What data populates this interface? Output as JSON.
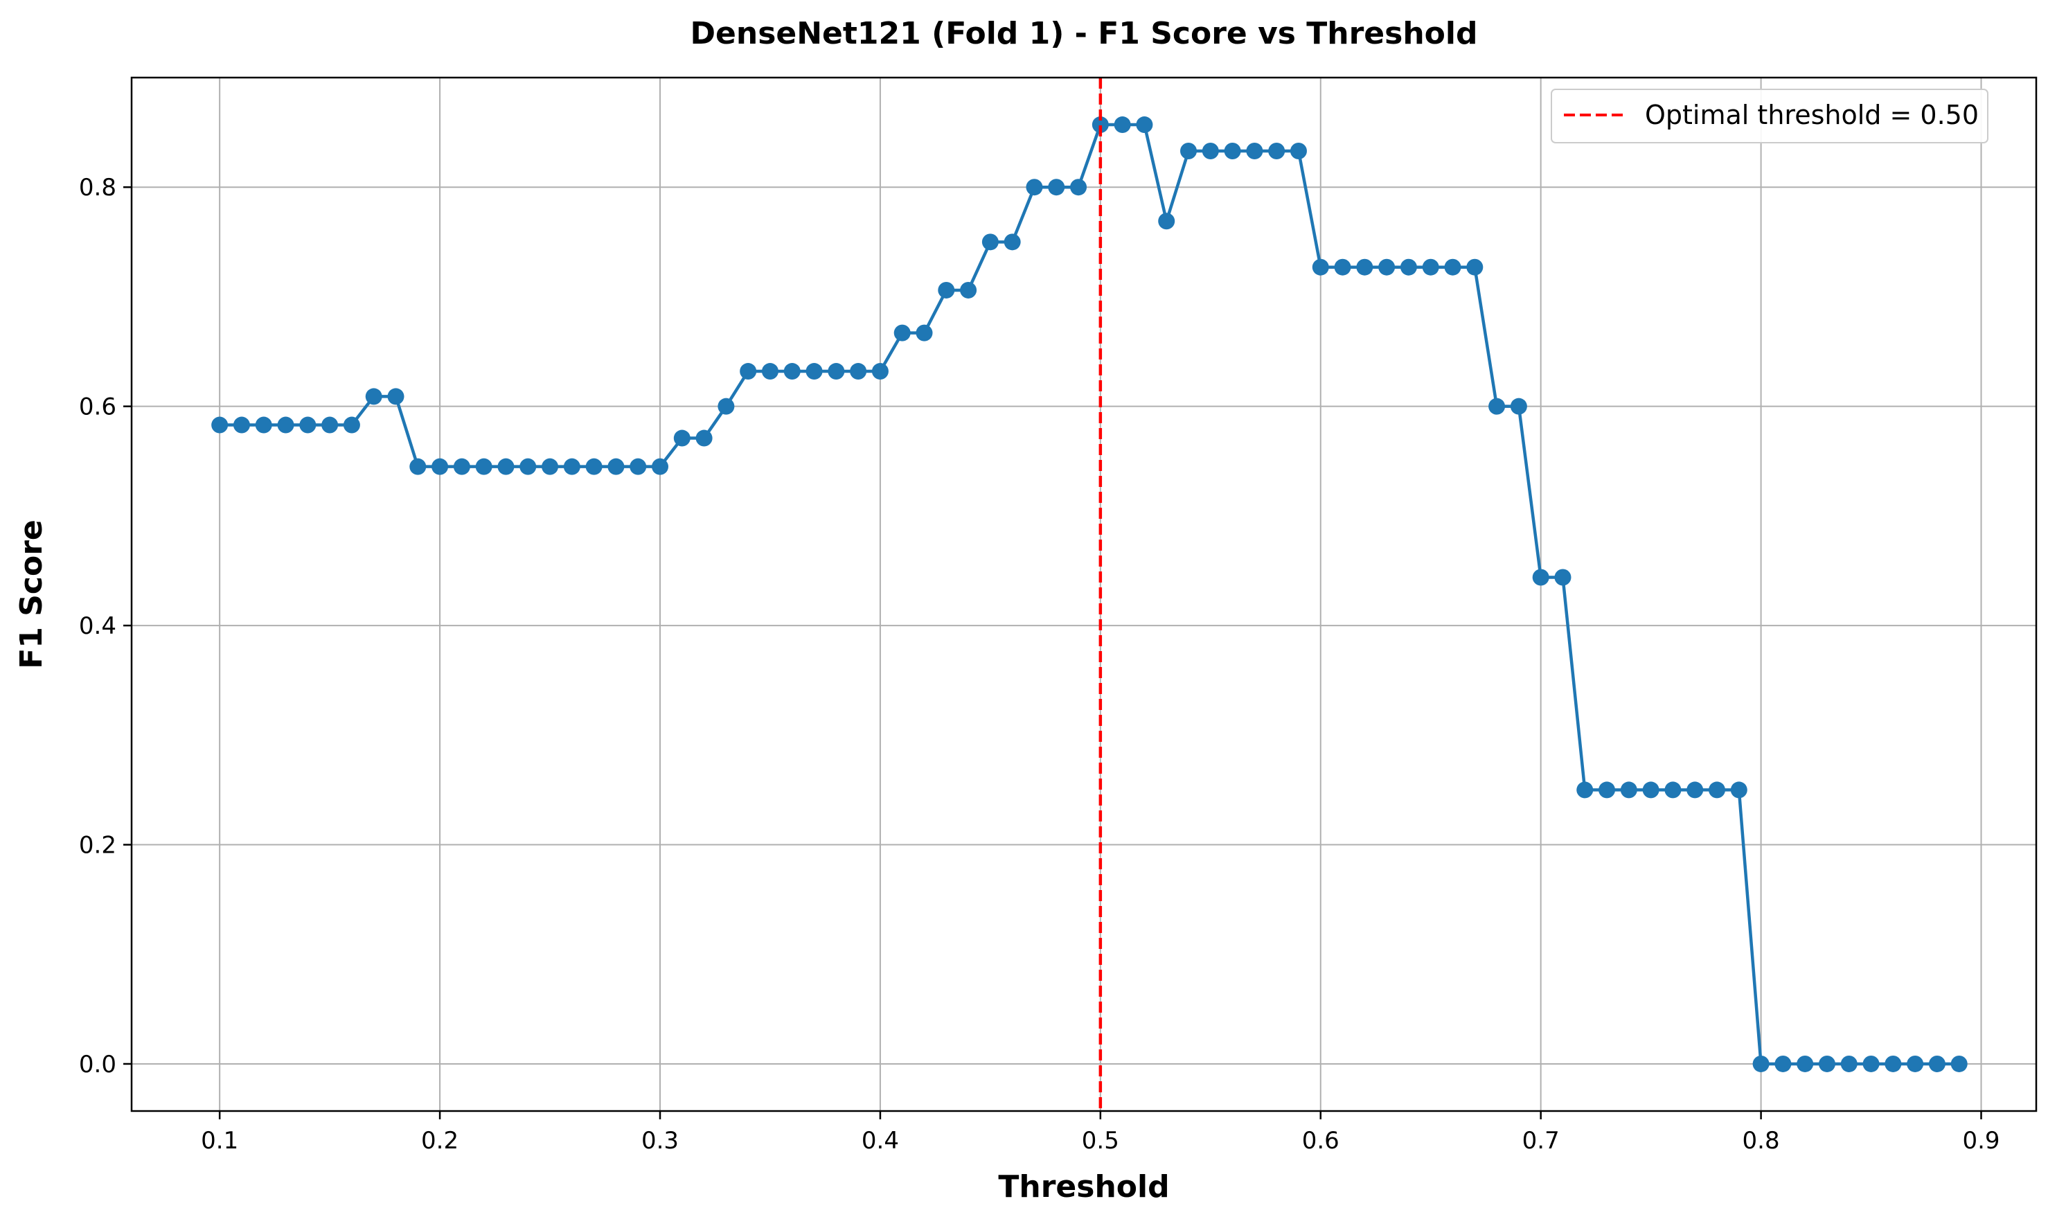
{
  "chart_data": {
    "type": "line",
    "title": "DenseNet121 (Fold 1) - F1 Score vs Threshold",
    "xlabel": "Threshold",
    "ylabel": "F1 Score",
    "xlim": [
      0.06,
      0.925
    ],
    "ylim": [
      -0.043,
      0.9
    ],
    "x_ticks": [
      0.1,
      0.2,
      0.3,
      0.4,
      0.5,
      0.6,
      0.7,
      0.8,
      0.9
    ],
    "x_tick_labels": [
      "0.1",
      "0.2",
      "0.3",
      "0.4",
      "0.5",
      "0.6",
      "0.7",
      "0.8",
      "0.9"
    ],
    "y_ticks": [
      0.0,
      0.2,
      0.4,
      0.6,
      0.8
    ],
    "y_tick_labels": [
      "0.0",
      "0.2",
      "0.4",
      "0.6",
      "0.8"
    ],
    "grid": true,
    "legend_position": "top-right",
    "series": [
      {
        "color": "#1f77b4",
        "marker": "circle",
        "x": [
          0.1,
          0.11,
          0.12,
          0.13,
          0.14,
          0.15,
          0.16,
          0.17,
          0.18,
          0.19,
          0.2,
          0.21,
          0.22,
          0.23,
          0.24,
          0.25,
          0.26,
          0.27,
          0.28,
          0.29,
          0.3,
          0.31,
          0.32,
          0.33,
          0.34,
          0.35,
          0.36,
          0.37,
          0.38,
          0.39,
          0.4,
          0.41,
          0.42,
          0.43,
          0.44,
          0.45,
          0.46,
          0.47,
          0.48,
          0.49,
          0.5,
          0.51,
          0.52,
          0.53,
          0.54,
          0.55,
          0.56,
          0.57,
          0.58,
          0.59,
          0.6,
          0.61,
          0.62,
          0.63,
          0.64,
          0.65,
          0.66,
          0.67,
          0.68,
          0.69,
          0.7,
          0.71,
          0.72,
          0.73,
          0.74,
          0.75,
          0.76,
          0.77,
          0.78,
          0.79,
          0.8,
          0.81,
          0.82,
          0.83,
          0.84,
          0.85,
          0.86,
          0.87,
          0.88,
          0.89
        ],
        "y": [
          0.583,
          0.583,
          0.583,
          0.583,
          0.583,
          0.583,
          0.583,
          0.609,
          0.609,
          0.545,
          0.545,
          0.545,
          0.545,
          0.545,
          0.545,
          0.545,
          0.545,
          0.545,
          0.545,
          0.545,
          0.545,
          0.571,
          0.571,
          0.6,
          0.632,
          0.632,
          0.632,
          0.632,
          0.632,
          0.632,
          0.632,
          0.667,
          0.667,
          0.706,
          0.706,
          0.75,
          0.75,
          0.8,
          0.8,
          0.8,
          0.857,
          0.857,
          0.857,
          0.769,
          0.833,
          0.833,
          0.833,
          0.833,
          0.833,
          0.833,
          0.727,
          0.727,
          0.727,
          0.727,
          0.727,
          0.727,
          0.727,
          0.727,
          0.6,
          0.6,
          0.444,
          0.444,
          0.25,
          0.25,
          0.25,
          0.25,
          0.25,
          0.25,
          0.25,
          0.25,
          0.0,
          0.0,
          0.0,
          0.0,
          0.0,
          0.0,
          0.0,
          0.0,
          0.0,
          0.0
        ]
      }
    ],
    "reference_lines": [
      {
        "orientation": "vertical",
        "x": 0.5,
        "color": "#ff0000",
        "style": "dashed",
        "label": "Optimal threshold = 0.50"
      }
    ]
  }
}
